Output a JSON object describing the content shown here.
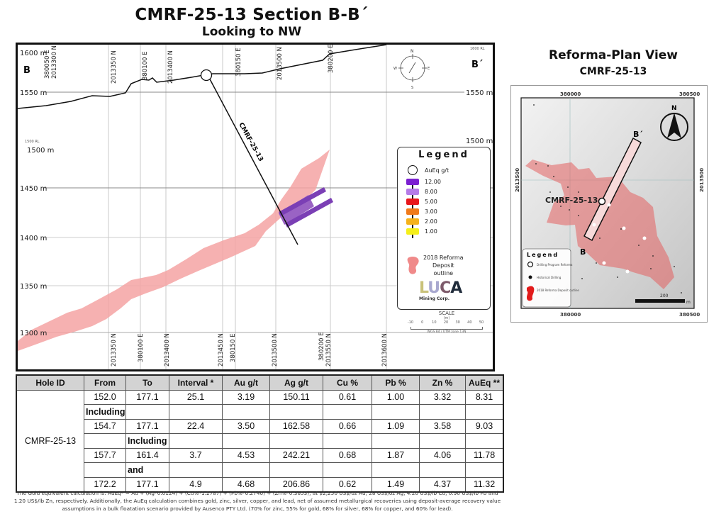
{
  "header": {
    "title": "CMRF-25-13  Section B-B´",
    "subtitle": "Looking to NW"
  },
  "section": {
    "end_label_left": "B",
    "end_label_right": "B´",
    "elevation_labels_left": [
      "1600 m",
      "1550 m",
      "1500 m",
      "1450 m",
      "1400 m",
      "1350 m",
      "1300 m"
    ],
    "elevation_labels_right": [
      "1550 m",
      "1500 m"
    ],
    "small_label_rl": "1500 RL",
    "small_label_rl_right": "1600 RL",
    "top_coord_labels": [
      "380050 E",
      "2013300 N",
      "2013350 N",
      "380100 E",
      "2013400 N",
      "380150 E",
      "2013500 N",
      "380200 E"
    ],
    "bottom_coord_labels": [
      "2013350 N",
      "380100 E",
      "2013400 N",
      "2013450 N",
      "380150 E",
      "2013500 N",
      "380200 E",
      "2013550 N",
      "2013600 N"
    ],
    "drillhole_label": "CMRF-25-13",
    "north_arrow": {
      "n": "N",
      "s": "S",
      "e": "E",
      "w": "W"
    }
  },
  "legend": {
    "title": "Legend",
    "collar_label": "AuEq g/t",
    "grades": [
      {
        "value": "12.00",
        "color": "#7b1fd1"
      },
      {
        "value": "8.00",
        "color": "#b57be8"
      },
      {
        "value": "5.00",
        "color": "#e8161b"
      },
      {
        "value": "3.00",
        "color": "#f07a1a"
      },
      {
        "value": "2.00",
        "color": "#f5b21a"
      },
      {
        "value": "1.00",
        "color": "#f5ef1a"
      }
    ],
    "deposit_label_1": "2018 Reforma",
    "deposit_label_2": "Deposit",
    "deposit_label_3": "outline",
    "deposit_color": "#f4a3a3",
    "logo_text": "LUCA",
    "logo_sub": "Mining Corp."
  },
  "scale": {
    "title": "SCALE",
    "unit": "(m)",
    "ticks": [
      "-10",
      "0",
      "10",
      "20",
      "30",
      "40",
      "50"
    ],
    "datum": "WGS 84 / UTM zone 13N"
  },
  "plan_view": {
    "title": "Reforma-Plan View",
    "subtitle": "CMRF-25-13",
    "x_labels": [
      "380000",
      "380500"
    ],
    "y_label": "2013500",
    "hole_label": "CMRF-25-13",
    "section_end_b": "B",
    "section_end_b_prime": "B´",
    "north": "N",
    "scale_label": "200",
    "scale_unit": "m",
    "legend": {
      "title": "Legend",
      "items": [
        "Drilling Program Reforma",
        "Historical Drilling",
        "2018 Reforma Deposit outline"
      ]
    }
  },
  "table": {
    "headers": [
      "Hole ID",
      "From",
      "To",
      "Interval *",
      "Au g/t",
      "Ag g/t",
      "Cu %",
      "Pb %",
      "Zn %",
      "AuEq **"
    ],
    "hole_id": "CMRF-25-13",
    "rows": [
      {
        "type": "data",
        "cells": [
          "152.0",
          "177.1",
          "25.1",
          "3.19",
          "150.11",
          "0.61",
          "1.00",
          "3.32",
          "8.31"
        ]
      },
      {
        "type": "label",
        "col": 1,
        "text": "Including"
      },
      {
        "type": "data",
        "cells": [
          "154.7",
          "177.1",
          "22.4",
          "3.50",
          "162.58",
          "0.66",
          "1.09",
          "3.58",
          "9.03"
        ]
      },
      {
        "type": "label",
        "col": 2,
        "text": "Including"
      },
      {
        "type": "data",
        "cells": [
          "157.7",
          "161.4",
          "3.7",
          "4.53",
          "242.21",
          "0.68",
          "1.87",
          "4.06",
          "11.78"
        ]
      },
      {
        "type": "label",
        "col": 2,
        "text": "and"
      },
      {
        "type": "data",
        "cells": [
          "172.2",
          "177.1",
          "4.9",
          "4.68",
          "206.86",
          "0.62",
          "1.49",
          "4.37",
          "11.32"
        ]
      }
    ]
  },
  "footnote": "The Gold equivalent calculation is: AuEq* = Au + (Ag*0.0124) + (Cu%*1.2787) + (Pb%*0.2740) + (Zn%*0.3653), at $2,250 US$/oz Au, 28 US$/oz Ag, 4.20 US$/lb Cu, 0.90 US$/lb Pb and 1.20 US$/lb Zn, respectively. Additionally, the AuEq calculation combines gold, zinc, silver, copper, and lead, net of assumed metallurgical recoveries using deposit-average recovery value assumptions in a bulk floatation scenario provided by Ausenco PTY Ltd. (70% for zinc, 55% for gold, 68% for silver, 68% for copper, and 60% for lead)."
}
